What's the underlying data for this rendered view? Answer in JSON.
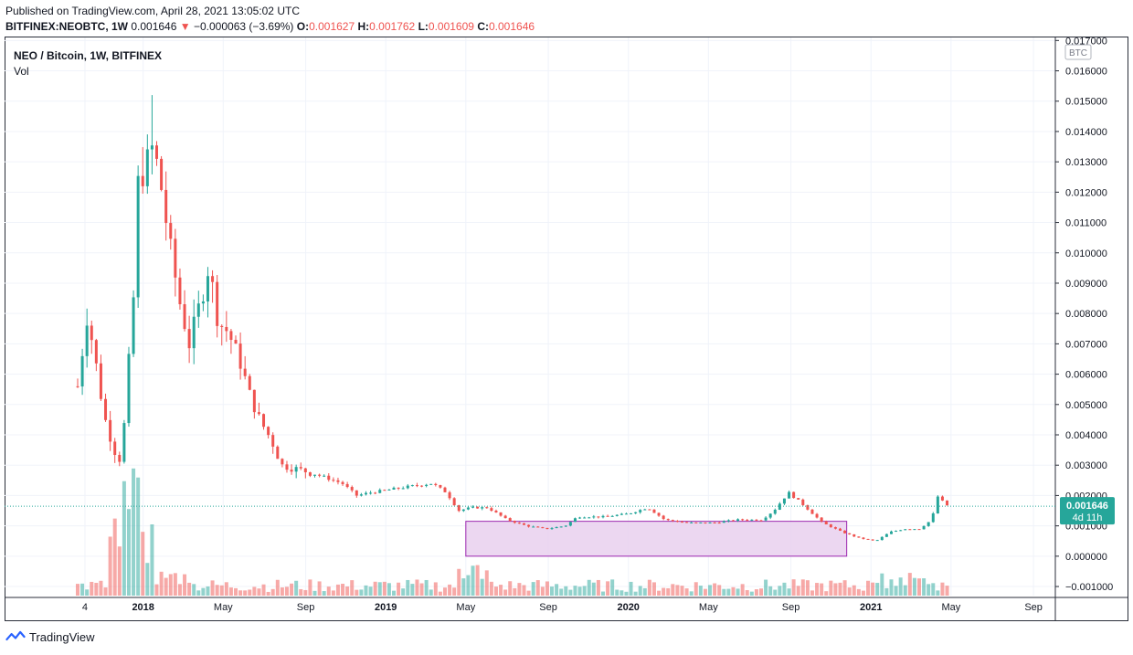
{
  "header": {
    "published": "Published on TradingView.com, April 28, 2021 13:05:02 UTC",
    "symbol_line": "BITFINEX:NEOBTC, 1W",
    "last": "0.001646",
    "change": "−0.000063 (−3.69%)",
    "o_label": "O:",
    "o": "0.001627",
    "h_label": "H:",
    "h": "0.001762",
    "l_label": "L:",
    "l": "0.001609",
    "c_label": "C:",
    "c": "0.001646"
  },
  "legend": {
    "title": "NEO / Bitcoin, 1W, BITFINEX",
    "vol": "Vol"
  },
  "footer": {
    "brand": "TradingView"
  },
  "colors": {
    "up": "#26a69a",
    "down": "#ef5350",
    "box_fill": "#e9d0ef",
    "box_stroke": "#9c27b0",
    "grid": "#f0f3fa",
    "price_label": "#26a69a"
  },
  "chart_data": {
    "type": "candlestick",
    "title": "NEO / Bitcoin, 1W, BITFINEX",
    "currency_label": "BTC",
    "last_price_label": "0.001646",
    "countdown": "4d 11h",
    "ylim": [
      -0.0013,
      0.0171
    ],
    "y_ticks": [
      "0.017000",
      "0.016000",
      "0.015000",
      "0.014000",
      "0.013000",
      "0.012000",
      "0.011000",
      "0.010000",
      "0.009000",
      "0.008000",
      "0.007000",
      "0.006000",
      "0.005000",
      "0.004000",
      "0.003000",
      "0.002000",
      "0.001000",
      "0.000000",
      "−0.001000"
    ],
    "y_tick_values": [
      0.017,
      0.016,
      0.015,
      0.014,
      0.013,
      0.012,
      0.011,
      0.01,
      0.009,
      0.008,
      0.007,
      0.006,
      0.005,
      0.004,
      0.003,
      0.002,
      0.001,
      0.0,
      -0.001
    ],
    "x_labels": [
      "4",
      "2018",
      "May",
      "Sep",
      "2019",
      "May",
      "Sep",
      "2020",
      "May",
      "Sep",
      "2021",
      "May",
      "Sep"
    ],
    "x_label_times": [
      2017.76,
      2018.0,
      2018.33,
      2018.67,
      2019.0,
      2019.33,
      2019.67,
      2020.0,
      2020.33,
      2020.67,
      2021.0,
      2021.33,
      2021.67
    ],
    "x_range": [
      2017.73,
      2021.76
    ],
    "rectangle": {
      "x0": 2019.33,
      "x1": 2020.9,
      "y0": 0.0,
      "y1": 0.00115
    },
    "anchors": [
      [
        2017.73,
        0.0056
      ],
      [
        2017.77,
        0.008
      ],
      [
        2017.8,
        0.0066
      ],
      [
        2017.84,
        0.0046
      ],
      [
        2017.88,
        0.0035
      ],
      [
        2017.91,
        0.0031
      ],
      [
        2017.93,
        0.0052
      ],
      [
        2017.96,
        0.0085
      ],
      [
        2017.98,
        0.0124
      ],
      [
        2018.02,
        0.013
      ],
      [
        2018.04,
        0.0135
      ],
      [
        2018.07,
        0.0124
      ],
      [
        2018.11,
        0.0102
      ],
      [
        2018.15,
        0.0084
      ],
      [
        2018.19,
        0.007
      ],
      [
        2018.24,
        0.0085
      ],
      [
        2018.27,
        0.0096
      ],
      [
        2018.31,
        0.0077
      ],
      [
        2018.35,
        0.0074
      ],
      [
        2018.4,
        0.0064
      ],
      [
        2018.44,
        0.0053
      ],
      [
        2018.48,
        0.0045
      ],
      [
        2018.53,
        0.0038
      ],
      [
        2018.57,
        0.003
      ],
      [
        2018.62,
        0.0029
      ],
      [
        2018.67,
        0.0028
      ],
      [
        2018.75,
        0.0026
      ],
      [
        2018.82,
        0.0024
      ],
      [
        2018.88,
        0.002
      ],
      [
        2018.94,
        0.0021
      ],
      [
        2019.02,
        0.0022
      ],
      [
        2019.1,
        0.0023
      ],
      [
        2019.19,
        0.0024
      ],
      [
        2019.25,
        0.0021
      ],
      [
        2019.3,
        0.0015
      ],
      [
        2019.35,
        0.0016
      ],
      [
        2019.42,
        0.0016
      ],
      [
        2019.5,
        0.0012
      ],
      [
        2019.58,
        0.001
      ],
      [
        2019.66,
        0.0009
      ],
      [
        2019.74,
        0.001
      ],
      [
        2019.79,
        0.0013
      ],
      [
        2019.9,
        0.0013
      ],
      [
        2020.0,
        0.0014
      ],
      [
        2020.08,
        0.0016
      ],
      [
        2020.15,
        0.0012
      ],
      [
        2020.25,
        0.0011
      ],
      [
        2020.35,
        0.0011
      ],
      [
        2020.45,
        0.0012
      ],
      [
        2020.55,
        0.0012
      ],
      [
        2020.6,
        0.0015
      ],
      [
        2020.66,
        0.0021
      ],
      [
        2020.72,
        0.0017
      ],
      [
        2020.8,
        0.0011
      ],
      [
        2020.88,
        0.0008
      ],
      [
        2020.95,
        0.0006
      ],
      [
        2021.02,
        0.0005
      ],
      [
        2021.08,
        0.0008
      ],
      [
        2021.14,
        0.0009
      ],
      [
        2021.2,
        0.0009
      ],
      [
        2021.25,
        0.0012
      ],
      [
        2021.28,
        0.0021
      ],
      [
        2021.3,
        0.0017
      ],
      [
        2021.33,
        0.00165
      ]
    ],
    "annotated_high": 0.0152,
    "annotated_high_time": 2018.04,
    "volume_note": "Volume histogram along the bottom of the pane"
  }
}
